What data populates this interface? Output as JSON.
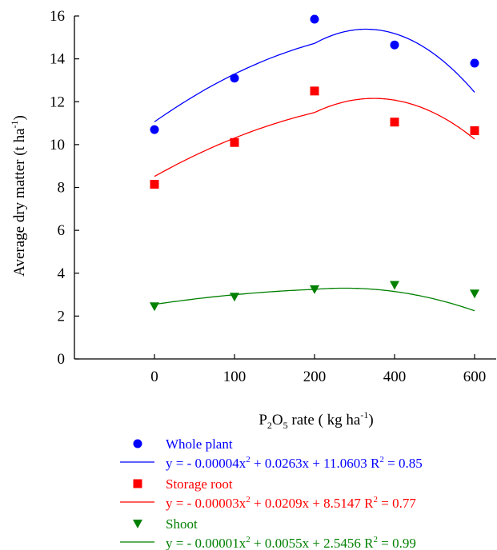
{
  "chart_data": {
    "type": "scatter",
    "title": "",
    "xlabel": {
      "pre": "P",
      "sub1": "2",
      "mid": "O",
      "sub2": "5",
      "post": " rate ( kg ha",
      "sup": "-1",
      "end": ")"
    },
    "ylabel": {
      "pre": "Average dry matter (t ha",
      "sup": "-1",
      "post": ")"
    },
    "categories": [
      "0",
      "100",
      "200",
      "400",
      "600"
    ],
    "x_fit": [
      0,
      100,
      200,
      400,
      600
    ],
    "ylim": [
      0,
      16
    ],
    "yticks": [
      "0",
      "2",
      "4",
      "6",
      "8",
      "10",
      "12",
      "14",
      "16"
    ],
    "grid": false,
    "legend_position": "bottom",
    "series": [
      {
        "name": "Whole plant",
        "color": "#0000ff",
        "marker": "circle",
        "values": [
          10.7,
          13.1,
          15.85,
          14.65,
          13.8
        ],
        "fit": {
          "a": -4e-05,
          "b": 0.0263,
          "c": 11.0603
        },
        "equation": {
          "p1": "y = - 0.00004x",
          "s1": "2",
          "p2": " + 0.0263x + 11.0603   R",
          "s2": "2",
          "p3": " = 0.85"
        }
      },
      {
        "name": "Storage root",
        "color": "#ff0000",
        "marker": "square",
        "values": [
          8.15,
          10.1,
          12.5,
          11.05,
          10.65
        ],
        "fit": {
          "a": -3e-05,
          "b": 0.0209,
          "c": 8.5147
        },
        "equation": {
          "p1": "y = - 0.00003x",
          "s1": "2",
          "p2": " + 0.0209x + 8.5147   R",
          "s2": "2",
          "p3": " = 0.77"
        }
      },
      {
        "name": "Shoot",
        "color": "#008000",
        "marker": "triangle-down",
        "values": [
          2.45,
          2.9,
          3.25,
          3.45,
          3.05
        ],
        "fit": {
          "a": -1e-05,
          "b": 0.0055,
          "c": 2.5456
        },
        "equation": {
          "p1": "y = - 0.00001x",
          "s1": "2",
          "p2": " + 0.0055x + 2.5456   R",
          "s2": "2",
          "p3": " = 0.99"
        }
      }
    ]
  }
}
